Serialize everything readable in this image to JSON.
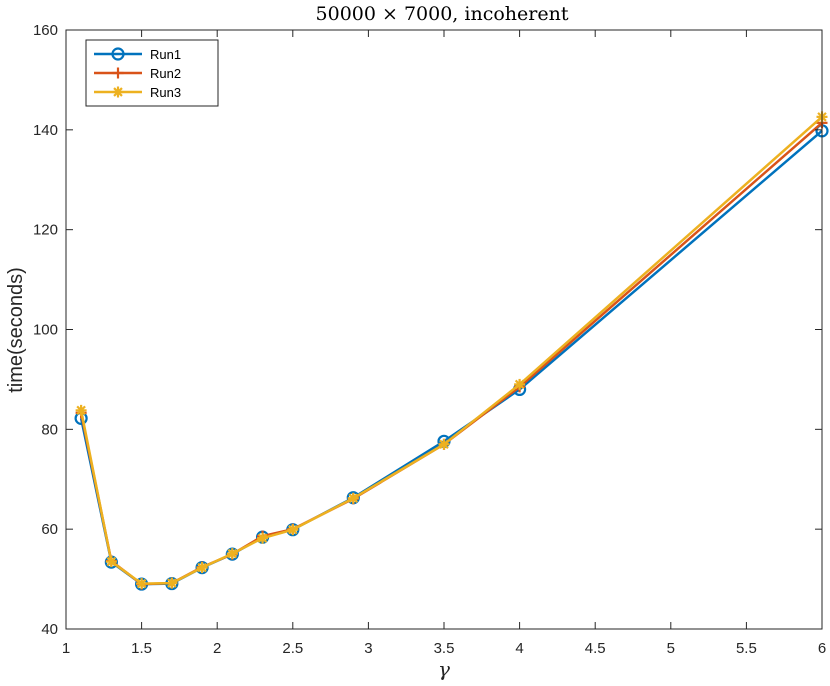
{
  "chart_data": {
    "type": "line",
    "title": "50000 × 7000, incoherent",
    "xlabel": "γ",
    "ylabel": "time(seconds)",
    "xlim": [
      1,
      6
    ],
    "ylim": [
      40,
      160
    ],
    "xticks": [
      1,
      1.5,
      2,
      2.5,
      3,
      3.5,
      4,
      4.5,
      5,
      5.5,
      6
    ],
    "xtick_labels": [
      "1",
      "1.5",
      "2",
      "2.5",
      "3",
      "3.5",
      "4",
      "4.5",
      "5",
      "5.5",
      "6"
    ],
    "yticks": [
      40,
      60,
      80,
      100,
      120,
      140,
      160
    ],
    "ytick_labels": [
      "40",
      "60",
      "80",
      "100",
      "120",
      "140",
      "160"
    ],
    "grid": false,
    "legend_position": "top-left",
    "x": [
      1.1,
      1.3,
      1.5,
      1.7,
      1.9,
      2.1,
      2.3,
      2.5,
      2.9,
      3.5,
      4,
      6
    ],
    "series": [
      {
        "name": "Run1",
        "color": "#0072BD",
        "marker": "circle",
        "values": [
          82.2,
          53.4,
          49.0,
          49.1,
          52.3,
          55.0,
          58.4,
          59.9,
          66.3,
          77.6,
          88.0,
          139.8
        ]
      },
      {
        "name": "Run2",
        "color": "#D95319",
        "marker": "plus",
        "values": [
          83.3,
          53.6,
          49.0,
          49.2,
          52.4,
          55.0,
          58.6,
          60.0,
          66.1,
          77.0,
          88.5,
          141.4
        ]
      },
      {
        "name": "Run3",
        "color": "#EDB120",
        "marker": "asterisk",
        "values": [
          83.8,
          53.5,
          49.1,
          49.2,
          52.3,
          55.1,
          58.2,
          59.9,
          66.2,
          77.0,
          89.0,
          142.6
        ]
      }
    ]
  }
}
